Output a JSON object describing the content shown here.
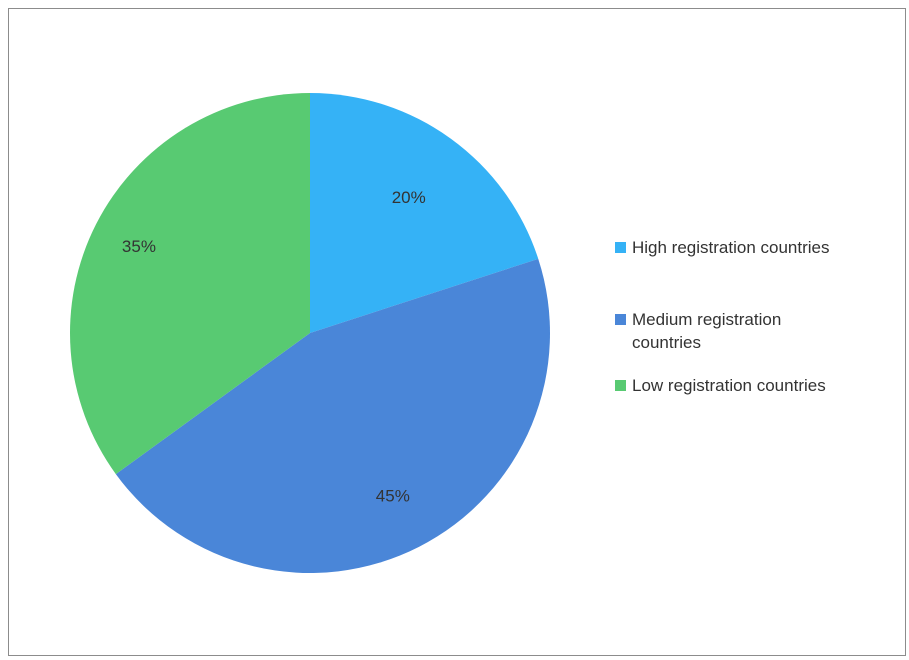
{
  "chart_data": {
    "type": "pie",
    "title": "",
    "categories": [
      "High registration countries",
      "Medium registration countries",
      "Low registration countries"
    ],
    "values": [
      20,
      45,
      35
    ],
    "labels": [
      "20%",
      "45%",
      "35%"
    ],
    "colors": [
      "#35b2f6",
      "#4a86d8",
      "#58ca72"
    ],
    "start_angle": "12 o'clock",
    "direction": "clockwise",
    "legend_position": "right"
  },
  "legend": {
    "items": [
      {
        "label": "High registration countries",
        "color": "#35b2f6"
      },
      {
        "label": "Medium registration countries",
        "color": "#4a86d8"
      },
      {
        "label": "Low registration countries",
        "color": "#58ca72"
      }
    ]
  }
}
